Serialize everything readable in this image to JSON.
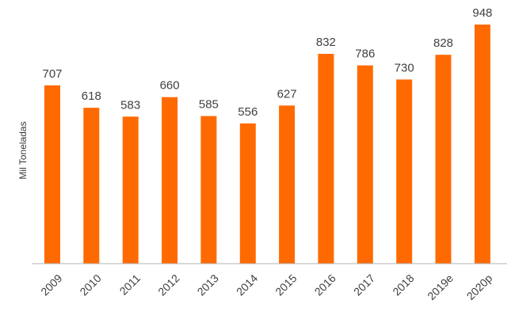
{
  "chart_data": {
    "type": "bar",
    "title": "",
    "xlabel": "",
    "ylabel": "Mil Toneladas",
    "categories": [
      "2009",
      "2010",
      "2011",
      "2012",
      "2013",
      "2014",
      "2015",
      "2016",
      "2017",
      "2018",
      "2019e",
      "2020p"
    ],
    "values": [
      707,
      618,
      583,
      660,
      585,
      556,
      627,
      832,
      786,
      730,
      828,
      948
    ],
    "data_labels": [
      "707",
      "618",
      "583",
      "660",
      "585",
      "556",
      "627",
      "832",
      "786",
      "730",
      "828",
      "948"
    ],
    "ylim": [
      0,
      948
    ],
    "grid": false,
    "legend": "none",
    "bar_color": "#ff6a00",
    "axis_color": "#b0b0b0",
    "text_color": "#404040"
  }
}
